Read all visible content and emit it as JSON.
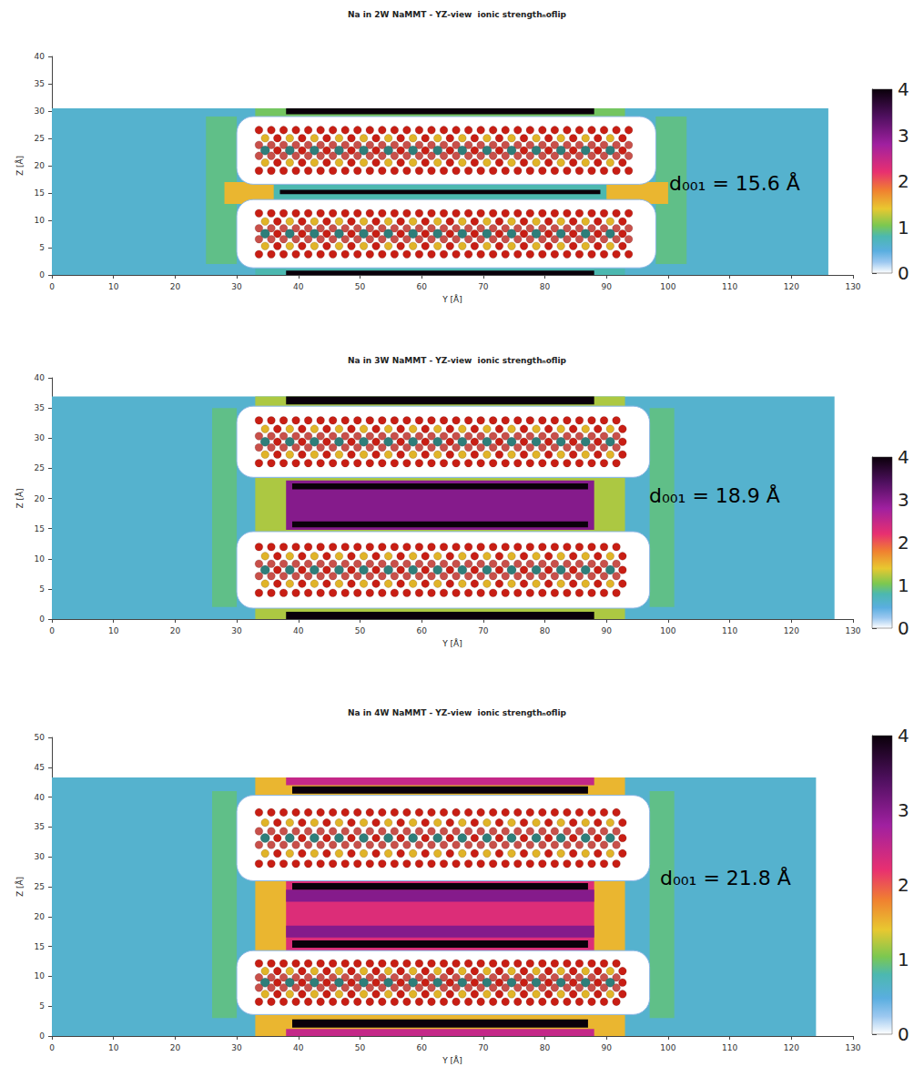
{
  "chart_data": [
    {
      "type": "heatmap",
      "title": "Na in 2W NaMMT - YZ-view  ionic strengthₙoflip",
      "x_label": "Y [Å]",
      "y_label": "Z [Å]",
      "xlim": [
        0,
        130
      ],
      "xticks": [
        0,
        10,
        20,
        30,
        40,
        50,
        60,
        70,
        80,
        90,
        100,
        110,
        120,
        130
      ],
      "ylim": [
        0,
        40
      ],
      "yticks": [
        0,
        5,
        10,
        15,
        20,
        25,
        30,
        35,
        40
      ],
      "grid": false,
      "annotation": "d₀₀₁ = 15.6 Å",
      "colorbar": {
        "range": [
          0,
          4
        ],
        "ticks": [
          0,
          1,
          2,
          3,
          4
        ]
      },
      "regions": [
        {
          "y": [
            0,
            126
          ],
          "z": [
            0,
            30.5
          ],
          "value": 0.6
        },
        {
          "y": [
            25,
            30
          ],
          "z": [
            2,
            29
          ],
          "value": 0.9
        },
        {
          "y": [
            98,
            103
          ],
          "z": [
            2,
            29
          ],
          "value": 0.9
        },
        {
          "y": [
            28,
            100
          ],
          "z": [
            13,
            17
          ],
          "value": 1.5
        },
        {
          "y": [
            36,
            90
          ],
          "z": [
            13.8,
            16.6
          ],
          "value": 0.8
        },
        {
          "y": [
            37,
            89
          ],
          "z": [
            14.8,
            15.6
          ],
          "value": 4
        },
        {
          "y": [
            33,
            93
          ],
          "z": [
            29,
            30.5
          ],
          "value": 1
        },
        {
          "y": [
            38,
            88
          ],
          "z": [
            29.4,
            30.5
          ],
          "value": 4
        },
        {
          "y": [
            33,
            93
          ],
          "z": [
            0,
            1.3
          ],
          "value": 0.8
        },
        {
          "y": [
            38,
            88
          ],
          "z": [
            0,
            0.8
          ],
          "value": 4
        }
      ],
      "layers": [
        {
          "y": [
            30,
            98
          ],
          "z": [
            16.6,
            29
          ],
          "value": 0
        },
        {
          "y": [
            30,
            98
          ],
          "z": [
            1.3,
            13.8
          ],
          "value": 0
        }
      ]
    },
    {
      "type": "heatmap",
      "title": "Na in 3W NaMMT - YZ-view  ionic strengthₙoflip",
      "x_label": "Y [Å]",
      "y_label": "Z [Å]",
      "xlim": [
        0,
        130
      ],
      "xticks": [
        0,
        10,
        20,
        30,
        40,
        50,
        60,
        70,
        80,
        90,
        100,
        110,
        120,
        130
      ],
      "ylim": [
        0,
        40
      ],
      "yticks": [
        0,
        5,
        10,
        15,
        20,
        25,
        30,
        35,
        40
      ],
      "grid": false,
      "annotation": "d₀₀₁ = 18.9 Å",
      "colorbar": {
        "range": [
          0,
          4
        ],
        "ticks": [
          0,
          1,
          2,
          3,
          4
        ]
      },
      "regions": [
        {
          "y": [
            0,
            127
          ],
          "z": [
            0,
            36.9
          ],
          "value": 0.6
        },
        {
          "y": [
            26,
            30
          ],
          "z": [
            2,
            35
          ],
          "value": 0.9
        },
        {
          "y": [
            97,
            101
          ],
          "z": [
            2,
            35
          ],
          "value": 0.9
        },
        {
          "y": [
            33,
            93
          ],
          "z": [
            14.5,
            23.4
          ],
          "value": 1.2
        },
        {
          "y": [
            38,
            88
          ],
          "z": [
            14.8,
            23
          ],
          "value": 3
        },
        {
          "y": [
            39,
            87
          ],
          "z": [
            15.2,
            16.2
          ],
          "value": 4
        },
        {
          "y": [
            39,
            87
          ],
          "z": [
            21.5,
            22.5
          ],
          "value": 4
        },
        {
          "y": [
            33,
            93
          ],
          "z": [
            35.3,
            36.9
          ],
          "value": 1.2
        },
        {
          "y": [
            38,
            88
          ],
          "z": [
            35.6,
            36.9
          ],
          "value": 4
        },
        {
          "y": [
            33,
            93
          ],
          "z": [
            0,
            1.8
          ],
          "value": 1.2
        },
        {
          "y": [
            38,
            88
          ],
          "z": [
            0,
            1.2
          ],
          "value": 4
        }
      ],
      "layers": [
        {
          "y": [
            30,
            97
          ],
          "z": [
            23.5,
            35.3
          ],
          "value": 0
        },
        {
          "y": [
            30,
            97
          ],
          "z": [
            1.8,
            14.5
          ],
          "value": 0
        }
      ]
    },
    {
      "type": "heatmap",
      "title": "Na in 4W NaMMT - YZ-view  ionic strengthₙoflip",
      "x_label": "Y [Å]",
      "y_label": "Z [Å]",
      "xlim": [
        0,
        130
      ],
      "xticks": [
        0,
        10,
        20,
        30,
        40,
        50,
        60,
        70,
        80,
        90,
        100,
        110,
        120,
        130
      ],
      "ylim": [
        0,
        50
      ],
      "yticks": [
        0,
        5,
        10,
        15,
        20,
        25,
        30,
        35,
        40,
        45,
        50
      ],
      "grid": false,
      "annotation": "d₀₀₁ = 21.8 Å",
      "colorbar": {
        "range": [
          0,
          4
        ],
        "ticks": [
          0,
          1,
          2,
          3,
          4
        ]
      },
      "regions": [
        {
          "y": [
            0,
            124
          ],
          "z": [
            0,
            43.3
          ],
          "value": 0.6
        },
        {
          "y": [
            26,
            30
          ],
          "z": [
            3,
            41
          ],
          "value": 0.9
        },
        {
          "y": [
            97,
            101
          ],
          "z": [
            3,
            41
          ],
          "value": 0.9
        },
        {
          "y": [
            33,
            93
          ],
          "z": [
            14.3,
            26
          ],
          "value": 1.5
        },
        {
          "y": [
            38,
            88
          ],
          "z": [
            14.3,
            26
          ],
          "value": 2.3
        },
        {
          "y": [
            38,
            88
          ],
          "z": [
            16.5,
            18.5
          ],
          "value": 3
        },
        {
          "y": [
            38,
            88
          ],
          "z": [
            22.5,
            24.5
          ],
          "value": 3
        },
        {
          "y": [
            39,
            87
          ],
          "z": [
            14.8,
            16
          ],
          "value": 4
        },
        {
          "y": [
            39,
            87
          ],
          "z": [
            24.5,
            25.6
          ],
          "value": 4
        },
        {
          "y": [
            33,
            93
          ],
          "z": [
            40.3,
            43.3
          ],
          "value": 1.5
        },
        {
          "y": [
            38,
            88
          ],
          "z": [
            42,
            43.3
          ],
          "value": 2.5
        },
        {
          "y": [
            39,
            87
          ],
          "z": [
            40.6,
            41.8
          ],
          "value": 4
        },
        {
          "y": [
            33,
            93
          ],
          "z": [
            0,
            3.6
          ],
          "value": 1.5
        },
        {
          "y": [
            38,
            88
          ],
          "z": [
            0,
            1.2
          ],
          "value": 2.5
        },
        {
          "y": [
            39,
            87
          ],
          "z": [
            1.4,
            2.8
          ],
          "value": 4
        }
      ],
      "layers": [
        {
          "y": [
            30,
            97
          ],
          "z": [
            26,
            40.3
          ],
          "value": 0
        },
        {
          "y": [
            30,
            97
          ],
          "z": [
            3.6,
            14.3
          ],
          "value": 0
        }
      ]
    }
  ]
}
